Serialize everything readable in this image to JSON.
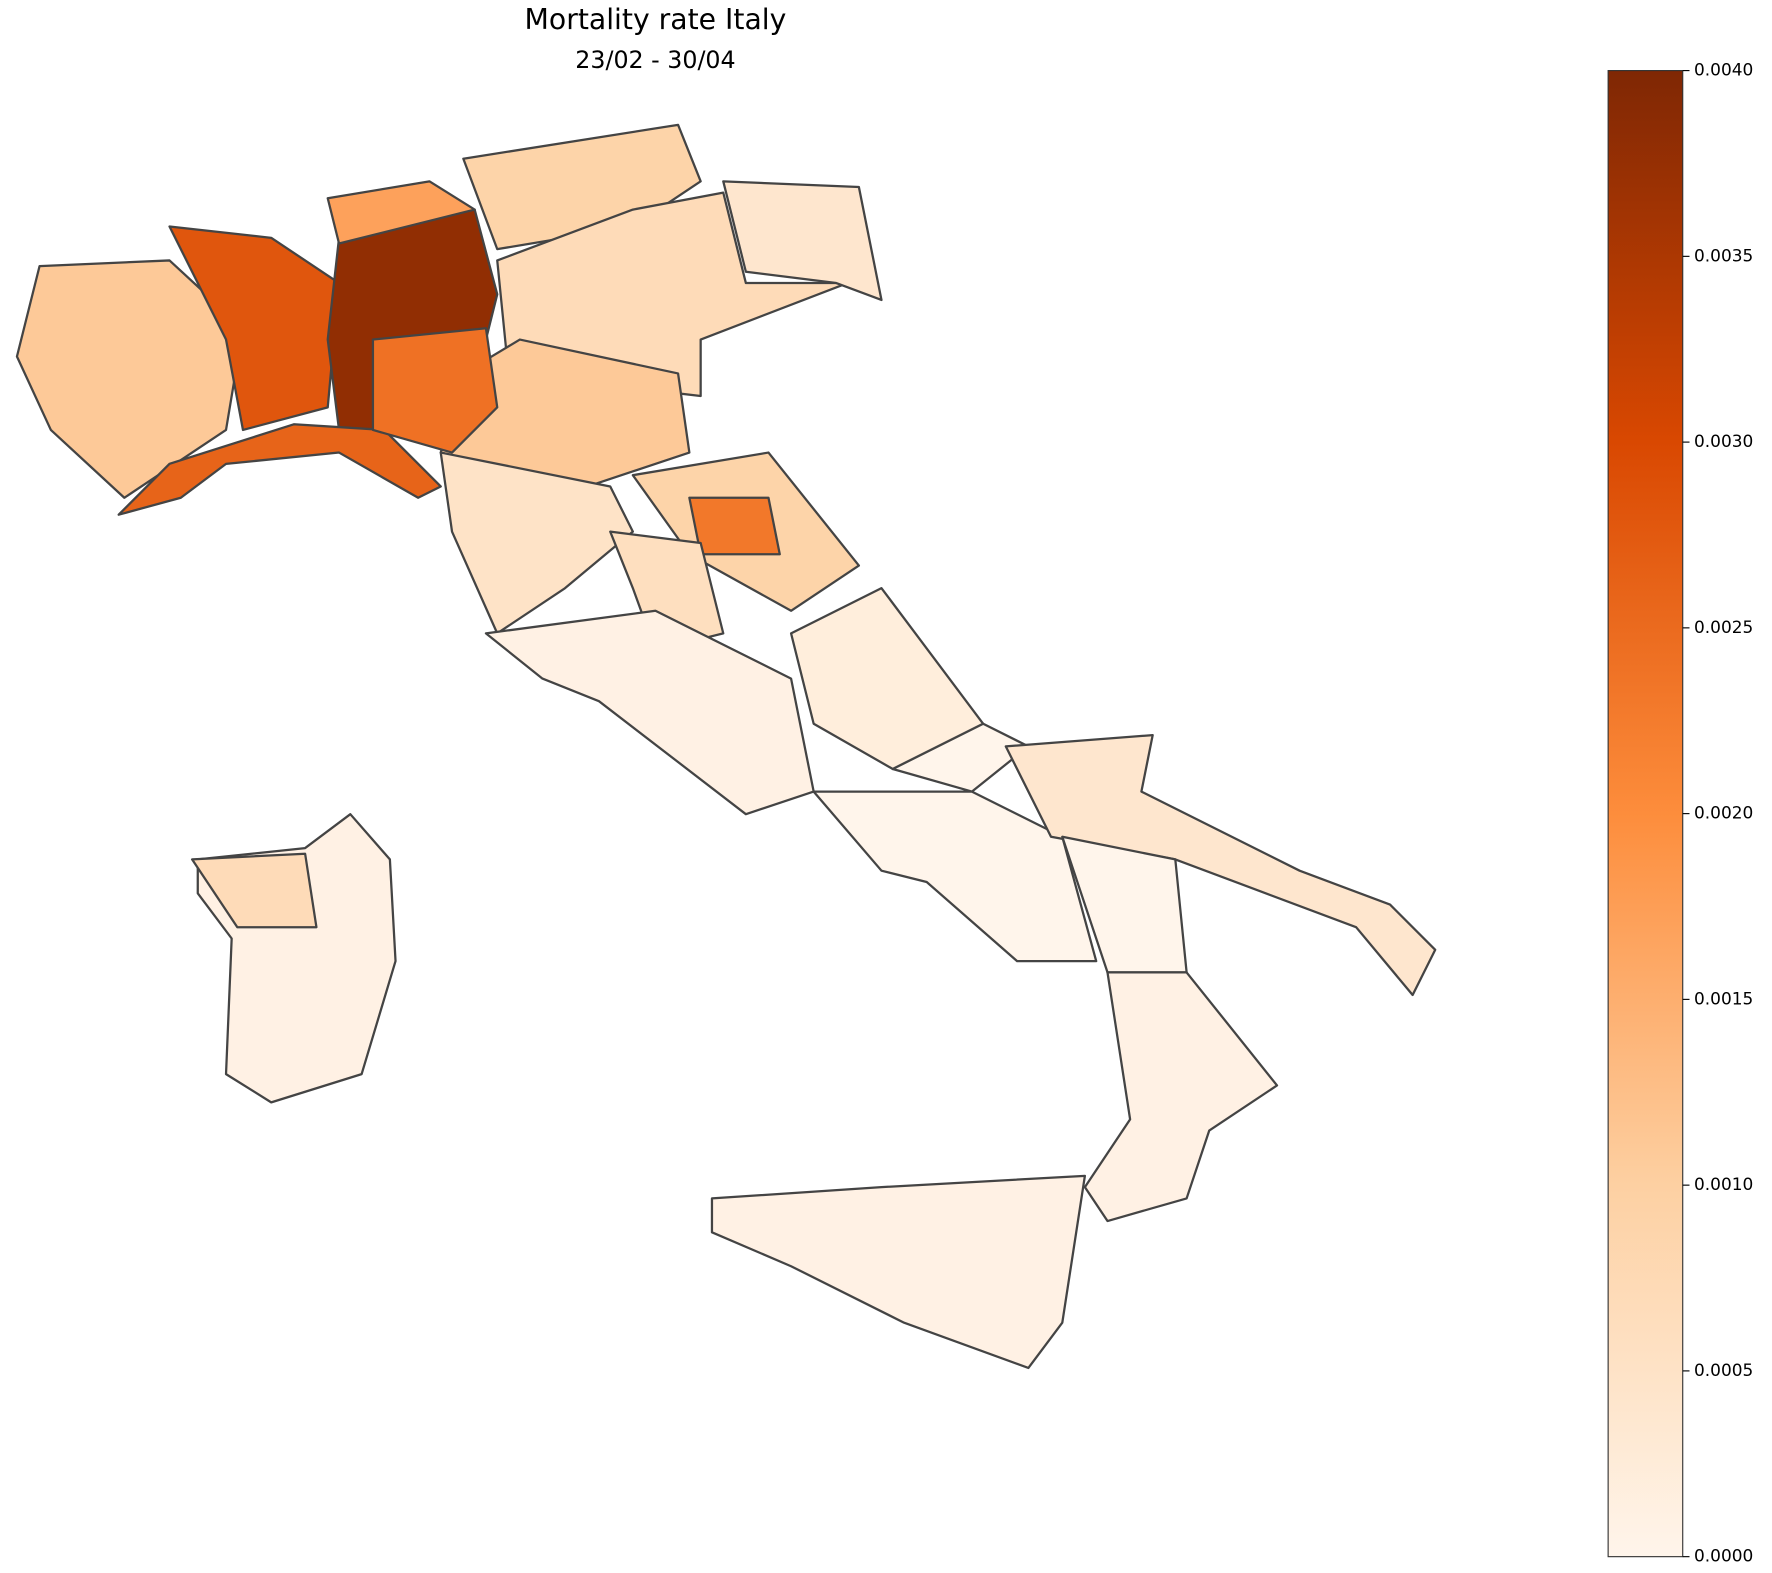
{
  "chart_data": {
    "type": "choropleth",
    "title": "Mortality rate Italy",
    "subtitle": "23/02 - 30/04",
    "categories": [
      null,
      null,
      null,
      null,
      null,
      null,
      null,
      null,
      null,
      null,
      null,
      null,
      null,
      null,
      null,
      null,
      null,
      null,
      null,
      null,
      null,
      null,
      null,
      null
    ],
    "values": [
      0.0011,
      0.0028,
      0.0038,
      0.0017,
      0.0026,
      0.0009,
      0.0007,
      0.0004,
      0.0011,
      0.0024,
      0.0005,
      0.0009,
      0.0023,
      0.0006,
      0.0001,
      0.0002,
      0,
      0,
      0.0004,
      0,
      0.0001,
      0.0001,
      0.0001,
      0.0007
    ],
    "colorscale": [
      "#fff5eb",
      "#fdd0a2",
      "#fd8d3c",
      "#d94801",
      "#7f2704"
    ],
    "clim": [
      0,
      0.004
    ],
    "cticks": [
      {
        "value": 0,
        "label": "0.0000"
      },
      {
        "value": 0.0005,
        "label": "0.0005"
      },
      {
        "value": 0.001,
        "label": "0.0010"
      },
      {
        "value": 0.0015,
        "label": "0.0015"
      },
      {
        "value": 0.002,
        "label": "0.0020"
      },
      {
        "value": 0.0025,
        "label": "0.0025"
      },
      {
        "value": 0.003,
        "label": "0.0030"
      },
      {
        "value": 0.0035,
        "label": "0.0035"
      },
      {
        "value": 0.004,
        "label": "0.0040"
      }
    ]
  }
}
